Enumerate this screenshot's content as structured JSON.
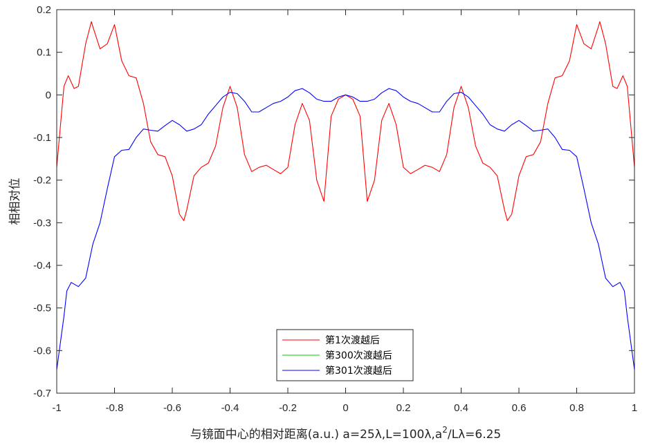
{
  "chart_data": {
    "type": "line",
    "title": "",
    "xlabel": "与镜面中心的相对距离(a.u.) a=25λ,L=100λ,a",
    "xlabel_sup": "2",
    "xlabel_suffix": "/Lλ=6.25",
    "ylabel": "相相对位",
    "xlim": [
      -1,
      1
    ],
    "ylim": [
      -0.7,
      0.2
    ],
    "xticks": [
      -1,
      -0.8,
      -0.6,
      -0.4,
      -0.2,
      0,
      0.2,
      0.4,
      0.6,
      0.8,
      1
    ],
    "xtick_labels": [
      "-1",
      "-0.8",
      "-0.6",
      "-0.4",
      "-0.2",
      "0",
      "0.2",
      "0.4",
      "0.6",
      "0.8",
      "1"
    ],
    "yticks": [
      0.2,
      0.1,
      0,
      -0.1,
      -0.2,
      -0.3,
      -0.4,
      -0.5,
      -0.6,
      -0.7
    ],
    "ytick_labels": [
      "0.2",
      "0.1",
      "0",
      "-0.1",
      "-0.2",
      "-0.3",
      "-0.4",
      "-0.5",
      "-0.6",
      "-0.7"
    ],
    "grid": false,
    "legend_position": "bottom-center",
    "series": [
      {
        "name": "第1次渡越后",
        "color": "#ff0000",
        "points": [
          [
            0,
            0
          ],
          [
            0.025,
            -0.01
          ],
          [
            0.05,
            -0.05
          ],
          [
            0.075,
            -0.25
          ],
          [
            0.1,
            -0.2
          ],
          [
            0.125,
            -0.06
          ],
          [
            0.15,
            -0.02
          ],
          [
            0.175,
            -0.07
          ],
          [
            0.2,
            -0.17
          ],
          [
            0.225,
            -0.185
          ],
          [
            0.25,
            -0.175
          ],
          [
            0.275,
            -0.165
          ],
          [
            0.3,
            -0.17
          ],
          [
            0.325,
            -0.18
          ],
          [
            0.35,
            -0.14
          ],
          [
            0.375,
            -0.03
          ],
          [
            0.4,
            0.02
          ],
          [
            0.425,
            -0.03
          ],
          [
            0.45,
            -0.12
          ],
          [
            0.475,
            -0.16
          ],
          [
            0.5,
            -0.17
          ],
          [
            0.525,
            -0.19
          ],
          [
            0.55,
            -0.27
          ],
          [
            0.56,
            -0.295
          ],
          [
            0.575,
            -0.28
          ],
          [
            0.6,
            -0.19
          ],
          [
            0.625,
            -0.145
          ],
          [
            0.65,
            -0.14
          ],
          [
            0.675,
            -0.11
          ],
          [
            0.7,
            -0.02
          ],
          [
            0.725,
            0.04
          ],
          [
            0.75,
            0.045
          ],
          [
            0.775,
            0.08
          ],
          [
            0.8,
            0.165
          ],
          [
            0.825,
            0.12
          ],
          [
            0.85,
            0.108
          ],
          [
            0.875,
            0.16
          ],
          [
            0.88,
            0.172
          ],
          [
            0.9,
            0.12
          ],
          [
            0.925,
            0.02
          ],
          [
            0.94,
            0.015
          ],
          [
            0.96,
            0.045
          ],
          [
            0.975,
            0.02
          ],
          [
            1,
            -0.17
          ]
        ]
      },
      {
        "name": "第300次渡越后",
        "color": "#00cc00",
        "points": []
      },
      {
        "name": "第301次渡越后",
        "color": "#0000ff",
        "points": [
          [
            0,
            0
          ],
          [
            0.025,
            -0.005
          ],
          [
            0.05,
            -0.015
          ],
          [
            0.075,
            -0.015
          ],
          [
            0.1,
            -0.01
          ],
          [
            0.125,
            0.005
          ],
          [
            0.15,
            0.015
          ],
          [
            0.175,
            0.01
          ],
          [
            0.2,
            -0.005
          ],
          [
            0.225,
            -0.015
          ],
          [
            0.25,
            -0.02
          ],
          [
            0.275,
            -0.03
          ],
          [
            0.3,
            -0.04
          ],
          [
            0.325,
            -0.04
          ],
          [
            0.35,
            -0.015
          ],
          [
            0.375,
            0.003
          ],
          [
            0.4,
            0.006
          ],
          [
            0.425,
            -0.005
          ],
          [
            0.45,
            -0.025
          ],
          [
            0.475,
            -0.045
          ],
          [
            0.5,
            -0.07
          ],
          [
            0.525,
            -0.08
          ],
          [
            0.55,
            -0.085
          ],
          [
            0.575,
            -0.07
          ],
          [
            0.6,
            -0.06
          ],
          [
            0.625,
            -0.072
          ],
          [
            0.65,
            -0.085
          ],
          [
            0.675,
            -0.083
          ],
          [
            0.7,
            -0.08
          ],
          [
            0.725,
            -0.1
          ],
          [
            0.75,
            -0.128
          ],
          [
            0.775,
            -0.13
          ],
          [
            0.8,
            -0.145
          ],
          [
            0.825,
            -0.22
          ],
          [
            0.85,
            -0.3
          ],
          [
            0.875,
            -0.35
          ],
          [
            0.9,
            -0.43
          ],
          [
            0.925,
            -0.45
          ],
          [
            0.95,
            -0.44
          ],
          [
            0.965,
            -0.46
          ],
          [
            0.975,
            -0.52
          ],
          [
            1,
            -0.645
          ]
        ]
      }
    ]
  }
}
